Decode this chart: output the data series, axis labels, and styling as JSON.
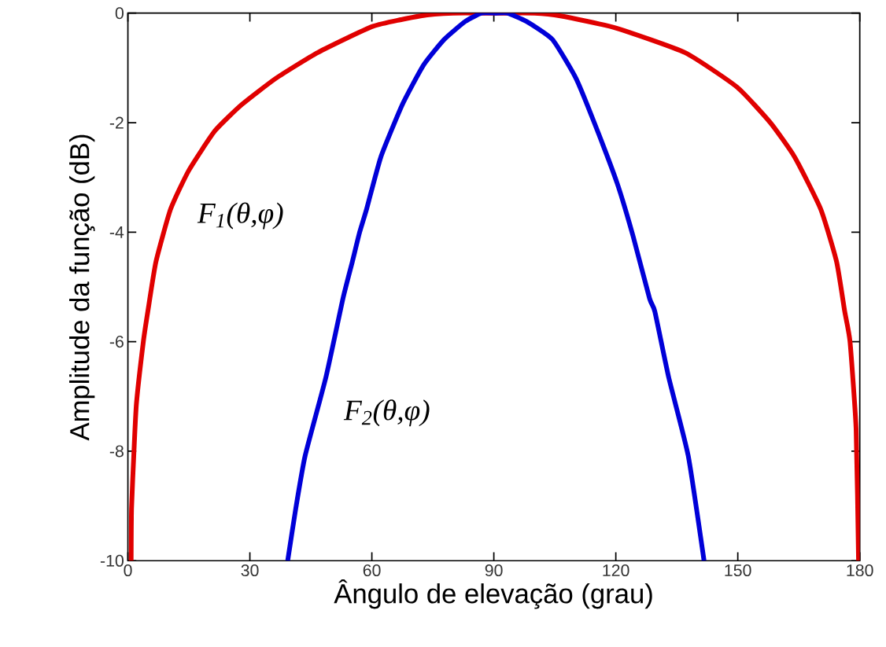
{
  "chart_data": {
    "type": "line",
    "xlabel": "Ângulo de elevação (grau)",
    "ylabel": "Amplitude da função (dB)",
    "xlim": [
      0,
      180
    ],
    "ylim": [
      -10,
      0
    ],
    "xticks": [
      0,
      30,
      60,
      90,
      120,
      150,
      180
    ],
    "yticks": [
      -10,
      -8,
      -6,
      -4,
      -2,
      0
    ],
    "series": [
      {
        "name": "F$_{1}$(θ,φ)",
        "color": "#e00000",
        "x": [
          0.8,
          0.9,
          1.5,
          2.1,
          3.8,
          4.9,
          6.9,
          10.5,
          15,
          21.4,
          28,
          36.4,
          46.7,
          60.3,
          72,
          80,
          90,
          100,
          106.4,
          120,
          137,
          149.8,
          158,
          164,
          170.4,
          174.3,
          176.3,
          177.6,
          179.1,
          179.7
        ],
        "values": [
          -10,
          -9.04,
          -7.99,
          -7.13,
          -6.0,
          -5.45,
          -4.54,
          -3.58,
          -2.87,
          -2.15,
          -1.67,
          -1.19,
          -0.72,
          -0.24,
          -0.05,
          0,
          0,
          0,
          -0.05,
          -0.27,
          -0.72,
          -1.35,
          -2.0,
          -2.63,
          -3.58,
          -4.54,
          -5.45,
          -6.0,
          -7.6,
          -10
        ]
      },
      {
        "name": "F$_{2}$(θ,φ)",
        "color": "#0000d8",
        "x": [
          39.3,
          41.3,
          43.6,
          48.7,
          52.9,
          55.2,
          57.0,
          58.7,
          62.2,
          67.5,
          72.7,
          77.8,
          83,
          87,
          90.5,
          93.3,
          98,
          104.4,
          110.2,
          114.7,
          120.3,
          124.2,
          128.3,
          129.6,
          133,
          137.8,
          141.7
        ],
        "values": [
          -10,
          -9.04,
          -8.08,
          -6.65,
          -5.21,
          -4.54,
          -4.0,
          -3.58,
          -2.63,
          -1.67,
          -0.95,
          -0.48,
          -0.15,
          0,
          0,
          0,
          -0.15,
          -0.48,
          -1.19,
          -2.0,
          -3.1,
          -4.06,
          -5.21,
          -5.45,
          -6.65,
          -8.08,
          -10
        ]
      }
    ]
  }
}
